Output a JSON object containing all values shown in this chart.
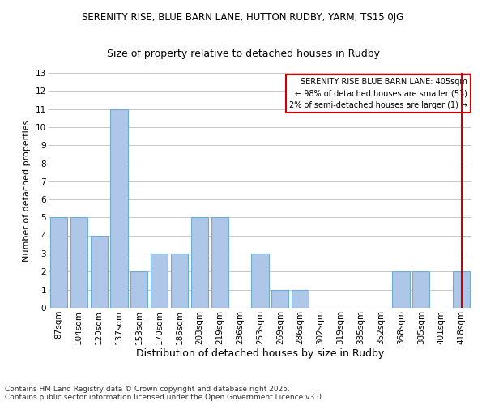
{
  "title1": "SERENITY RISE, BLUE BARN LANE, HUTTON RUDBY, YARM, TS15 0JG",
  "title2": "Size of property relative to detached houses in Rudby",
  "xlabel": "Distribution of detached houses by size in Rudby",
  "ylabel": "Number of detached properties",
  "footer": "Contains HM Land Registry data © Crown copyright and database right 2025.\nContains public sector information licensed under the Open Government Licence v3.0.",
  "categories": [
    "87sqm",
    "104sqm",
    "120sqm",
    "137sqm",
    "153sqm",
    "170sqm",
    "186sqm",
    "203sqm",
    "219sqm",
    "236sqm",
    "253sqm",
    "269sqm",
    "286sqm",
    "302sqm",
    "319sqm",
    "335sqm",
    "352sqm",
    "368sqm",
    "385sqm",
    "401sqm",
    "418sqm"
  ],
  "values": [
    5,
    5,
    4,
    11,
    2,
    3,
    3,
    5,
    5,
    0,
    3,
    1,
    1,
    0,
    0,
    0,
    0,
    2,
    2,
    0,
    2
  ],
  "bar_color": "#aec6e8",
  "bar_edge_color": "#6baed6",
  "highlight_index": 20,
  "highlight_line_color": "#cc0000",
  "legend_title": "SERENITY RISE BLUE BARN LANE: 405sqm",
  "legend_line1": "← 98% of detached houses are smaller (53)",
  "legend_line2": "2% of semi-detached houses are larger (1) →",
  "ylim": [
    0,
    13
  ],
  "yticks": [
    0,
    1,
    2,
    3,
    4,
    5,
    6,
    7,
    8,
    9,
    10,
    11,
    12,
    13
  ],
  "background_color": "#ffffff",
  "grid_color": "#c8c8c8",
  "title1_fontsize": 8.5,
  "title2_fontsize": 9,
  "ylabel_fontsize": 8,
  "xlabel_fontsize": 9,
  "tick_fontsize": 7.5,
  "footer_fontsize": 6.5
}
